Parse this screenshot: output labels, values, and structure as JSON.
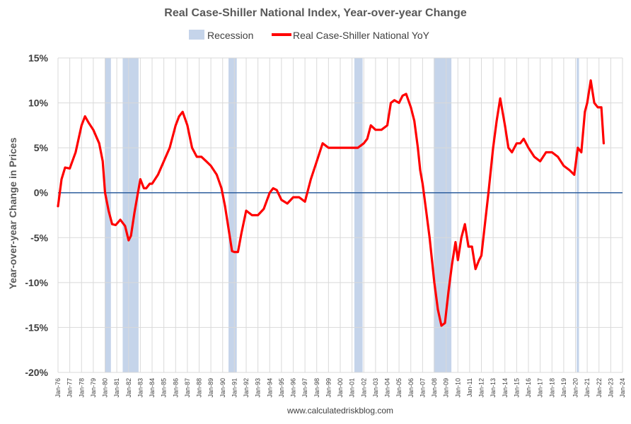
{
  "chart_data": {
    "type": "line",
    "title": "Real Case-Shiller National Index, Year-over-year Change",
    "ylabel": "Year-over-year Change in Prices",
    "xlabel": "",
    "source": "www.calculatedriskblog.com",
    "ylim": [
      -20,
      15
    ],
    "xlim": [
      1976.0,
      2024.0
    ],
    "y_ticks": [
      "15%",
      "10%",
      "5%",
      "0%",
      "-5%",
      "-10%",
      "-15%",
      "-20%"
    ],
    "y_tick_values": [
      15,
      10,
      5,
      0,
      -5,
      -10,
      -15,
      -20
    ],
    "x_ticks": [
      "Jan-76",
      "Jan-77",
      "Jan-78",
      "Jan-79",
      "Jan-80",
      "Jan-81",
      "Jan-82",
      "Jan-83",
      "Jan-84",
      "Jan-85",
      "Jan-86",
      "Jan-87",
      "Jan-88",
      "Jan-89",
      "Jan-90",
      "Jan-91",
      "Jan-92",
      "Jan-93",
      "Jan-94",
      "Jan-95",
      "Jan-96",
      "Jan-97",
      "Jan-98",
      "Jan-99",
      "Jan-00",
      "Jan-01",
      "Jan-02",
      "Jan-03",
      "Jan-04",
      "Jan-05",
      "Jan-06",
      "Jan-07",
      "Jan-08",
      "Jan-09",
      "Jan-10",
      "Jan-11",
      "Jan-12",
      "Jan-13",
      "Jan-14",
      "Jan-15",
      "Jan-16",
      "Jan-17",
      "Jan-18",
      "Jan-19",
      "Jan-20",
      "Jan-21",
      "Jan-22",
      "Jan-23",
      "Jan-24"
    ],
    "grid": true,
    "legend_position": "top-center",
    "legend": [
      {
        "name": "Recession",
        "color": "#c5d4ea"
      },
      {
        "name": "Real Case-Shiller National YoY",
        "color": "#ff0000"
      }
    ],
    "recessions": [
      [
        1980.0,
        1980.5
      ],
      [
        1981.5,
        1982.85
      ],
      [
        1990.5,
        1991.2
      ],
      [
        2001.2,
        2001.9
      ],
      [
        2007.95,
        2009.45
      ],
      [
        2020.1,
        2020.3
      ]
    ],
    "series": [
      {
        "name": "Real Case-Shiller National YoY",
        "color": "#ff0000",
        "x": [
          1976.0,
          1976.3,
          1976.6,
          1977.0,
          1977.5,
          1978.0,
          1978.3,
          1978.6,
          1979.0,
          1979.5,
          1979.8,
          1980.0,
          1980.3,
          1980.6,
          1980.9,
          1981.3,
          1981.7,
          1982.0,
          1982.2,
          1982.5,
          1982.8,
          1983.0,
          1983.3,
          1983.5,
          1983.8,
          1984.0,
          1984.5,
          1985.0,
          1985.5,
          1986.0,
          1986.3,
          1986.6,
          1987.0,
          1987.4,
          1987.8,
          1988.2,
          1988.6,
          1989.0,
          1989.5,
          1989.9,
          1990.2,
          1990.5,
          1990.8,
          1991.0,
          1991.3,
          1991.6,
          1992.0,
          1992.5,
          1993.0,
          1993.5,
          1994.0,
          1994.3,
          1994.6,
          1995.0,
          1995.5,
          1996.0,
          1996.5,
          1997.0,
          1997.5,
          1998.0,
          1998.5,
          1999.0,
          1999.5,
          2000.0,
          2000.5,
          2001.0,
          2001.5,
          2002.0,
          2002.3,
          2002.6,
          2003.0,
          2003.5,
          2004.0,
          2004.3,
          2004.6,
          2005.0,
          2005.3,
          2005.6,
          2006.0,
          2006.3,
          2006.6,
          2006.8,
          2007.0,
          2007.3,
          2007.6,
          2008.0,
          2008.3,
          2008.6,
          2008.9,
          2009.2,
          2009.5,
          2009.8,
          2010.0,
          2010.3,
          2010.6,
          2010.9,
          2011.2,
          2011.5,
          2011.8,
          2012.0,
          2012.3,
          2012.6,
          2013.0,
          2013.3,
          2013.6,
          2014.0,
          2014.3,
          2014.6,
          2015.0,
          2015.3,
          2015.6,
          2016.0,
          2016.5,
          2017.0,
          2017.5,
          2018.0,
          2018.5,
          2019.0,
          2019.5,
          2019.9,
          2020.2,
          2020.5,
          2020.8,
          2021.0,
          2021.3,
          2021.6,
          2021.9,
          2022.2,
          2022.4
        ],
        "values": [
          -1.5,
          1.5,
          2.8,
          2.7,
          4.5,
          7.5,
          8.5,
          7.8,
          7.0,
          5.5,
          3.5,
          0.0,
          -2.0,
          -3.5,
          -3.6,
          -3.0,
          -3.7,
          -5.3,
          -4.8,
          -2.2,
          0.0,
          1.5,
          0.5,
          0.5,
          1.0,
          1.0,
          2.0,
          3.5,
          5.0,
          7.5,
          8.5,
          9.0,
          7.5,
          5.0,
          4.0,
          4.0,
          3.5,
          3.0,
          2.0,
          0.5,
          -1.5,
          -4.0,
          -6.5,
          -6.6,
          -6.6,
          -4.5,
          -2.0,
          -2.5,
          -2.5,
          -1.8,
          0.0,
          0.5,
          0.3,
          -0.8,
          -1.2,
          -0.5,
          -0.5,
          -1.0,
          1.5,
          3.5,
          5.5,
          5.0,
          5.0,
          5.0,
          5.0,
          5.0,
          5.0,
          5.5,
          6.0,
          7.5,
          7.0,
          7.0,
          7.5,
          10.0,
          10.3,
          10.0,
          10.8,
          11.0,
          9.5,
          8.0,
          5.0,
          2.5,
          1.0,
          -2.0,
          -5.0,
          -10.0,
          -13.0,
          -14.8,
          -14.5,
          -11.0,
          -8.0,
          -5.5,
          -7.5,
          -5.0,
          -3.5,
          -6.0,
          -6.0,
          -8.5,
          -7.5,
          -7.0,
          -3.5,
          0.0,
          5.0,
          8.0,
          10.5,
          7.5,
          5.0,
          4.5,
          5.5,
          5.5,
          6.0,
          5.0,
          4.0,
          3.5,
          4.5,
          4.5,
          4.0,
          3.0,
          2.5,
          2.0,
          5.0,
          4.5,
          9.0,
          10.0,
          12.5,
          10.0,
          9.5,
          9.5,
          5.5
        ]
      }
    ]
  }
}
